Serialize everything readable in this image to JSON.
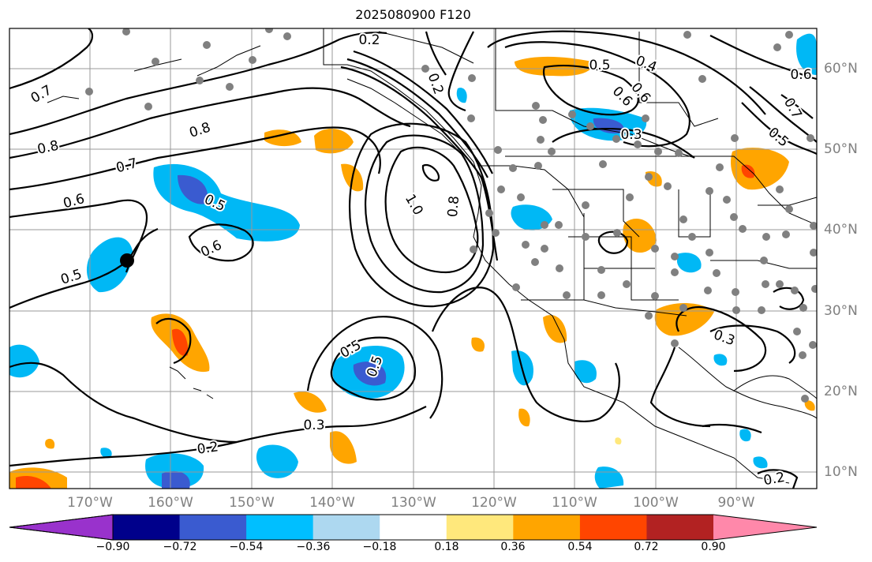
{
  "title": "2025080900 F120",
  "map": {
    "projection": "cylindrical",
    "lon_range": [
      -180,
      -80
    ],
    "lat_range": [
      8,
      65
    ],
    "gridlines": true,
    "lat_labels": [
      "60°N",
      "50°N",
      "40°N",
      "30°N",
      "20°N",
      "10°N"
    ],
    "lon_labels": [
      "170°W",
      "160°W",
      "150°W",
      "140°W",
      "130°W",
      "120°W",
      "110°W",
      "100°W",
      "90°W"
    ],
    "contour_labels": [
      "0.2",
      "0.5",
      "0.4",
      "0.6",
      "0.7",
      "0.8",
      "0.6",
      "0.7",
      "0.8",
      "0.7",
      "0.6",
      "0.5",
      "0.6",
      "0.5",
      "1.0",
      "0.8",
      "0.6",
      "0.3",
      "0.5",
      "0.5",
      "0.5",
      "0.3",
      "0.2",
      "0.3",
      "0.2",
      "0.2"
    ],
    "colors": {
      "neg_strong": "#3a5bd0",
      "neg_mid": "#00b8f5",
      "pos_light": "#ffa500",
      "pos_strong": "#ff4500",
      "station": "#808080",
      "marker": "#000000"
    }
  },
  "colorbar": {
    "colors": [
      "#9932cc",
      "#00008b",
      "#3a5bd0",
      "#00bfff",
      "#add8f0",
      "#ffffff",
      "#ffe87c",
      "#ffa500",
      "#ff4500",
      "#b22222",
      "#ff88aa"
    ],
    "ticks": [
      "−0.90",
      "−0.72",
      "−0.54",
      "−0.36",
      "−0.18",
      "0.18",
      "0.36",
      "0.54",
      "0.72",
      "0.90"
    ]
  }
}
